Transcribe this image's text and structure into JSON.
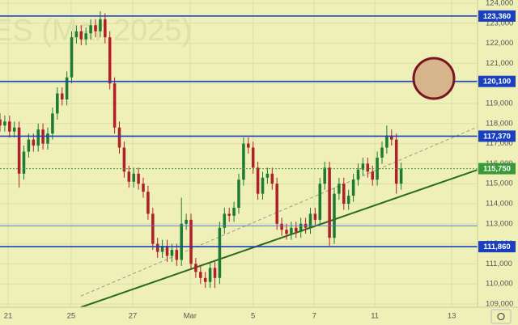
{
  "chart_data": {
    "type": "candlestick",
    "watermark": "ES (Mar 2025)",
    "up_color": "#1e7b34",
    "down_color": "#b0202a",
    "x": [
      0,
      1,
      2,
      3,
      4,
      5,
      6,
      7,
      8,
      9,
      10,
      11,
      12,
      13,
      14,
      15,
      16,
      17,
      18,
      19,
      20,
      21,
      22,
      23,
      24,
      25,
      26,
      27,
      28,
      29,
      30,
      31,
      32,
      33,
      34,
      35,
      36,
      37,
      38,
      39,
      40,
      41,
      42,
      43,
      44,
      45,
      46,
      47,
      48,
      49,
      50,
      51,
      52,
      53,
      54,
      55,
      56,
      57,
      58,
      59,
      60,
      61,
      62,
      63,
      64,
      65,
      66,
      67,
      68,
      69,
      70,
      71,
      72,
      73,
      74,
      75,
      76,
      77,
      78,
      79,
      80,
      81,
      82,
      83,
      84
    ],
    "open": [
      118200,
      117900,
      118100,
      117600,
      117800,
      115500,
      116600,
      117200,
      116900,
      117700,
      117000,
      117500,
      118500,
      119500,
      119200,
      120300,
      122300,
      122600,
      122200,
      122500,
      122900,
      122600,
      123200,
      122300,
      120000,
      117800,
      116800,
      115600,
      115100,
      115500,
      115000,
      114600,
      113500,
      112000,
      111600,
      111900,
      111400,
      111700,
      111200,
      113000,
      113200,
      111000,
      110600,
      110300,
      110100,
      110800,
      110300,
      112800,
      113500,
      113400,
      113800,
      115200,
      117000,
      116800,
      115800,
      114500,
      115300,
      115500,
      115000,
      113000,
      112700,
      112500,
      112800,
      112600,
      113000,
      112800,
      113500,
      113200,
      115000,
      115800,
      112300,
      114500,
      115000,
      114000,
      114400,
      115200,
      115700,
      116000,
      115600,
      115200,
      116300,
      116800,
      117400,
      117200,
      115000
    ],
    "high": [
      118500,
      118400,
      118400,
      118100,
      118100,
      116900,
      117500,
      117500,
      118000,
      118000,
      117800,
      118800,
      119800,
      119800,
      120600,
      122600,
      122900,
      122900,
      122800,
      123200,
      123200,
      123600,
      123500,
      122600,
      120300,
      118100,
      117100,
      115900,
      115800,
      115800,
      115300,
      114900,
      113800,
      112300,
      112200,
      112200,
      112000,
      112000,
      114300,
      113500,
      113500,
      111300,
      110900,
      110600,
      111100,
      111100,
      113100,
      113800,
      113800,
      114100,
      115500,
      117300,
      117300,
      117100,
      116100,
      115600,
      115800,
      115800,
      115300,
      113300,
      113000,
      113100,
      113100,
      113300,
      113300,
      113800,
      113800,
      115300,
      116100,
      116100,
      114800,
      115300,
      115300,
      114700,
      115500,
      116000,
      116300,
      116300,
      115900,
      116600,
      117100,
      117900,
      117700,
      117500,
      116050
    ],
    "low": [
      117600,
      117600,
      117300,
      117300,
      114800,
      115200,
      116300,
      116600,
      116600,
      116700,
      116700,
      117200,
      118200,
      118900,
      118900,
      120000,
      122000,
      121900,
      121900,
      122200,
      122300,
      122300,
      122000,
      119700,
      117500,
      116500,
      115300,
      114800,
      114800,
      114700,
      114300,
      113200,
      111700,
      111300,
      111300,
      111100,
      111100,
      110900,
      110900,
      112700,
      110700,
      110300,
      110000,
      109800,
      109800,
      109800,
      110000,
      112500,
      113100,
      113100,
      113500,
      114900,
      116500,
      115500,
      114200,
      114200,
      115000,
      114700,
      112700,
      112400,
      112200,
      112200,
      112300,
      112300,
      112500,
      112500,
      112900,
      112900,
      114700,
      111900,
      112000,
      114200,
      113700,
      113700,
      114100,
      114900,
      115400,
      115300,
      114900,
      114900,
      116000,
      116500,
      116900,
      114500,
      114700
    ],
    "close": [
      117900,
      118100,
      117600,
      117800,
      115500,
      116600,
      117200,
      116900,
      117700,
      117000,
      117500,
      118500,
      119500,
      119200,
      120300,
      122300,
      122600,
      122200,
      122500,
      122900,
      122600,
      123200,
      122300,
      120000,
      117800,
      116800,
      115600,
      115100,
      115500,
      115000,
      114600,
      113500,
      112000,
      111600,
      111900,
      111400,
      111700,
      111200,
      113000,
      113200,
      111000,
      110600,
      110300,
      110100,
      110800,
      110300,
      112800,
      113500,
      113400,
      113800,
      115200,
      117000,
      116800,
      115800,
      114500,
      115300,
      115500,
      115000,
      113000,
      112700,
      112500,
      112800,
      112600,
      113000,
      112800,
      113500,
      113200,
      115000,
      115800,
      112300,
      114500,
      115000,
      114000,
      114400,
      115200,
      115700,
      116000,
      115600,
      115200,
      116300,
      116800,
      117400,
      117200,
      115000,
      115750
    ],
    "levels": [
      {
        "value": 123360,
        "label": "123,360",
        "color": "#1a3fbf"
      },
      {
        "value": 120100,
        "label": "120,100",
        "color": "#1a3fbf"
      },
      {
        "value": 117370,
        "label": "117,370",
        "color": "#1a3fbf"
      },
      {
        "value": 112900,
        "color": "#4a6ad0"
      },
      {
        "value": 111860,
        "label": "111,860",
        "color": "#1a3fbf"
      }
    ],
    "last_price": {
      "value": 115750,
      "label": "115,750",
      "color": "#3a9a3a"
    },
    "trendlines": [
      {
        "x": [
          16.95,
          100
        ],
        "y": [
          108840,
          115693
        ],
        "color": "#2d6a1f",
        "dashed": false
      },
      {
        "x": [
          16.95,
          100
        ],
        "y": [
          109400,
          117830
        ],
        "color": "#9a9a90",
        "dashed": true
      }
    ],
    "xlim": [
      0,
      100
    ],
    "ylim": [
      108840,
      124160
    ],
    "xticks": [
      {
        "value": 1.7,
        "label": "21"
      },
      {
        "value": 14.9,
        "label": "25"
      },
      {
        "value": 27.8,
        "label": "27"
      },
      {
        "value": 39.8,
        "label": "Mar"
      },
      {
        "value": 53,
        "label": "5"
      },
      {
        "value": 65.8,
        "label": "7"
      },
      {
        "value": 78.5,
        "label": "11"
      },
      {
        "value": 94.6,
        "label": "13"
      }
    ],
    "yticks": [
      {
        "value": 109000,
        "label": "109,000"
      },
      {
        "value": 110000,
        "label": "110,000"
      },
      {
        "value": 111000,
        "label": "111,000"
      },
      {
        "value": 112000,
        "label": "112,000"
      },
      {
        "value": 113000,
        "label": "113,000"
      },
      {
        "value": 114000,
        "label": "114,000"
      },
      {
        "value": 115000,
        "label": "115,000"
      },
      {
        "value": 116000,
        "label": "116,000"
      },
      {
        "value": 117000,
        "label": "117,000"
      },
      {
        "value": 118000,
        "label": "118,000"
      },
      {
        "value": 119000,
        "label": "119,000"
      },
      {
        "value": 120000,
        "label": "120,000"
      },
      {
        "value": 121000,
        "label": "121,000"
      },
      {
        "value": 122000,
        "label": "122,000"
      },
      {
        "value": 123000,
        "label": "123,000"
      },
      {
        "value": 124000,
        "label": "124,000"
      }
    ],
    "grid": true
  }
}
